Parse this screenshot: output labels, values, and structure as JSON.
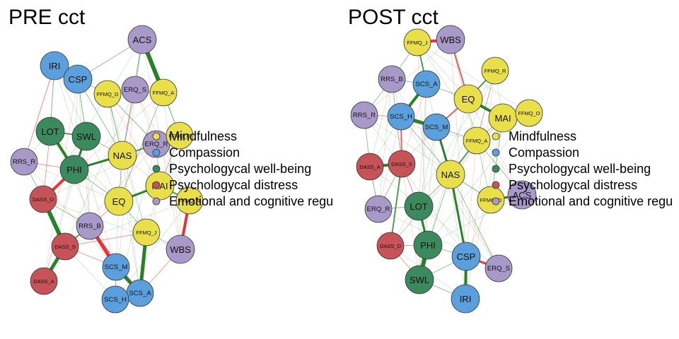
{
  "groups": {
    "mind": {
      "name": "Mindfulness",
      "color": "#E8DF4A"
    },
    "comp": {
      "name": "Compassion",
      "color": "#5B9FDC"
    },
    "well": {
      "name": "Psychologycal well-being",
      "color": "#3A8A5E"
    },
    "dist": {
      "name": "Psychologycal distress",
      "color": "#C65358"
    },
    "emo": {
      "name": "Emotional and cognitive regu",
      "color": "#A899C9"
    }
  },
  "legend_order": [
    "mind",
    "comp",
    "well",
    "dist",
    "emo"
  ],
  "edge_colors": {
    "positive": "#1E7A1E",
    "negative": "#E8282B"
  },
  "networks": [
    {
      "title": "PRE cct",
      "nodes": [
        {
          "id": "ACS",
          "group": "emo"
        },
        {
          "id": "IRI",
          "group": "comp"
        },
        {
          "id": "CSP",
          "group": "comp"
        },
        {
          "id": "FFMQ_D",
          "group": "mind"
        },
        {
          "id": "ERQ_S",
          "group": "emo"
        },
        {
          "id": "FFMQ_A",
          "group": "mind"
        },
        {
          "id": "LOT",
          "group": "well"
        },
        {
          "id": "SWL",
          "group": "well"
        },
        {
          "id": "NAS",
          "group": "mind"
        },
        {
          "id": "ERQ_R",
          "group": "emo"
        },
        {
          "id": "FFMQ_O",
          "group": "mind"
        },
        {
          "id": "RRS_R",
          "group": "emo"
        },
        {
          "id": "PHI",
          "group": "well"
        },
        {
          "id": "MAI",
          "group": "mind"
        },
        {
          "id": "FFMQ_R",
          "group": "mind"
        },
        {
          "id": "DASS_D",
          "group": "dist"
        },
        {
          "id": "EQ",
          "group": "mind"
        },
        {
          "id": "RRS_B",
          "group": "emo"
        },
        {
          "id": "FFMQ_J",
          "group": "mind"
        },
        {
          "id": "DASS_S",
          "group": "dist"
        },
        {
          "id": "WBS",
          "group": "emo"
        },
        {
          "id": "SCS_M",
          "group": "comp"
        },
        {
          "id": "DASS_A",
          "group": "dist"
        },
        {
          "id": "SCS_A",
          "group": "comp"
        },
        {
          "id": "SCS_H",
          "group": "comp"
        }
      ],
      "edges": [
        {
          "a": "ACS",
          "b": "FFMQ_A",
          "w": 6,
          "sign": "pos"
        },
        {
          "a": "LOT",
          "b": "PHI",
          "w": 4,
          "sign": "pos"
        },
        {
          "a": "SWL",
          "b": "PHI",
          "w": 3,
          "sign": "pos"
        },
        {
          "a": "PHI",
          "b": "NAS",
          "w": 3,
          "sign": "pos"
        },
        {
          "a": "DASS_D",
          "b": "DASS_S",
          "w": 6,
          "sign": "pos"
        },
        {
          "a": "DASS_S",
          "b": "DASS_A",
          "w": 5,
          "sign": "pos"
        },
        {
          "a": "PHI",
          "b": "DASS_D",
          "w": 4,
          "sign": "neg"
        },
        {
          "a": "RRS_B",
          "b": "SCS_M",
          "w": 5,
          "sign": "neg"
        },
        {
          "a": "SCS_M",
          "b": "SCS_A",
          "w": 5,
          "sign": "pos"
        },
        {
          "a": "SCS_A",
          "b": "SCS_H",
          "w": 3,
          "sign": "pos"
        },
        {
          "a": "FFMQ_J",
          "b": "SCS_A",
          "w": 5,
          "sign": "pos"
        },
        {
          "a": "FFMQ_R",
          "b": "WBS",
          "w": 4,
          "sign": "neg"
        },
        {
          "a": "NAS",
          "b": "ERQ_R",
          "w": 2,
          "sign": "pos"
        },
        {
          "a": "EQ",
          "b": "MAI",
          "w": 3,
          "sign": "pos"
        },
        {
          "a": "FFMQ_D",
          "b": "NAS",
          "w": 1,
          "sign": "pos"
        },
        {
          "a": "LOT",
          "b": "SWL",
          "w": 2,
          "sign": "pos"
        },
        {
          "a": "RRS_R",
          "b": "DASS_D",
          "w": 1,
          "sign": "pos"
        },
        {
          "a": "RRS_B",
          "b": "DASS_S",
          "w": 2,
          "sign": "pos"
        },
        {
          "a": "EQ",
          "b": "RRS_B",
          "w": 1,
          "sign": "neg"
        },
        {
          "a": "CSP",
          "b": "FFMQ_D",
          "w": 1,
          "sign": "pos"
        },
        {
          "a": "IRI",
          "b": "CSP",
          "w": 1,
          "sign": "pos"
        },
        {
          "a": "ACS",
          "b": "ERQ_S",
          "w": 1,
          "sign": "pos"
        },
        {
          "a": "ERQ_S",
          "b": "FFMQ_A",
          "w": 1,
          "sign": "pos"
        },
        {
          "a": "FFMQ_A",
          "b": "FFMQ_O",
          "w": 1,
          "sign": "pos"
        },
        {
          "a": "MAI",
          "b": "FFMQ_R",
          "w": 2,
          "sign": "pos"
        },
        {
          "a": "EQ",
          "b": "FFMQ_J",
          "w": 1,
          "sign": "pos"
        },
        {
          "a": "SWL",
          "b": "NAS",
          "w": 1,
          "sign": "pos"
        },
        {
          "a": "CSP",
          "b": "SWL",
          "w": 1,
          "sign": "pos"
        },
        {
          "a": "IRI",
          "b": "LOT",
          "w": 1,
          "sign": "pos"
        },
        {
          "a": "RRS_R",
          "b": "PHI",
          "w": 1,
          "sign": "neg"
        },
        {
          "a": "DASS_D",
          "b": "RRS_B",
          "w": 1,
          "sign": "pos"
        },
        {
          "a": "SCS_M",
          "b": "SCS_H",
          "w": 1,
          "sign": "pos"
        },
        {
          "a": "WBS",
          "b": "SCS_A",
          "w": 1,
          "sign": "neg"
        },
        {
          "a": "ACS",
          "b": "NAS",
          "w": 1,
          "sign": "pos"
        },
        {
          "a": "FFMQ_D",
          "b": "FFMQ_A",
          "w": 1,
          "sign": "pos"
        },
        {
          "a": "ERQ_R",
          "b": "MAI",
          "w": 1,
          "sign": "pos"
        },
        {
          "a": "FFMQ_O",
          "b": "MAI",
          "w": 1,
          "sign": "pos"
        },
        {
          "a": "LOT",
          "b": "DASS_D",
          "w": 1,
          "sign": "neg"
        },
        {
          "a": "DASS_S",
          "b": "SCS_M",
          "w": 1,
          "sign": "neg"
        },
        {
          "a": "FFMQ_J",
          "b": "WBS",
          "w": 1,
          "sign": "pos"
        },
        {
          "a": "CSP",
          "b": "NAS",
          "w": 1,
          "sign": "pos"
        },
        {
          "a": "ERQ_S",
          "b": "NAS",
          "w": 1,
          "sign": "neg"
        },
        {
          "a": "EQ",
          "b": "NAS",
          "w": 1,
          "sign": "pos"
        },
        {
          "a": "PHI",
          "b": "EQ",
          "w": 1,
          "sign": "pos"
        },
        {
          "a": "RRS_B",
          "b": "SCS_A",
          "w": 1,
          "sign": "neg"
        },
        {
          "a": "IRI",
          "b": "RRS_R",
          "w": 1,
          "sign": "neg"
        },
        {
          "a": "FFMQ_D",
          "b": "ERQ_R",
          "w": 1,
          "sign": "pos"
        },
        {
          "a": "CSP",
          "b": "ACS",
          "w": 1,
          "sign": "pos"
        },
        {
          "a": "FFMQ_A",
          "b": "EQ",
          "w": 1,
          "sign": "pos"
        },
        {
          "a": "DASS_S",
          "b": "FFMQ_J",
          "w": 1,
          "sign": "neg"
        }
      ]
    },
    {
      "title": "POST cct",
      "nodes": [
        {
          "id": "FFMQ_J",
          "group": "mind"
        },
        {
          "id": "WBS",
          "group": "emo"
        },
        {
          "id": "RRS_B",
          "group": "emo"
        },
        {
          "id": "SCS_A",
          "group": "comp"
        },
        {
          "id": "FFMQ_R",
          "group": "mind"
        },
        {
          "id": "EQ",
          "group": "mind"
        },
        {
          "id": "RRS_R",
          "group": "emo"
        },
        {
          "id": "SCS_H",
          "group": "comp"
        },
        {
          "id": "SCS_M",
          "group": "comp"
        },
        {
          "id": "MAI",
          "group": "mind"
        },
        {
          "id": "FFMQ_O",
          "group": "mind"
        },
        {
          "id": "FFMQ_A",
          "group": "mind"
        },
        {
          "id": "DASS_A",
          "group": "dist"
        },
        {
          "id": "DASS_S",
          "group": "dist"
        },
        {
          "id": "NAS",
          "group": "mind"
        },
        {
          "id": "ACS",
          "group": "emo"
        },
        {
          "id": "FFMQ_D",
          "group": "mind"
        },
        {
          "id": "ERQ_R",
          "group": "emo"
        },
        {
          "id": "LOT",
          "group": "well"
        },
        {
          "id": "DASS_D",
          "group": "dist"
        },
        {
          "id": "PHI",
          "group": "well"
        },
        {
          "id": "CSP",
          "group": "comp"
        },
        {
          "id": "ERQ_S",
          "group": "emo"
        },
        {
          "id": "SWL",
          "group": "well"
        },
        {
          "id": "IRI",
          "group": "comp"
        }
      ],
      "edges": [
        {
          "a": "FFMQ_J",
          "b": "WBS",
          "w": 4,
          "sign": "neg"
        },
        {
          "a": "SCS_A",
          "b": "SCS_H",
          "w": 4,
          "sign": "pos"
        },
        {
          "a": "SCS_H",
          "b": "SCS_M",
          "w": 5,
          "sign": "pos"
        },
        {
          "a": "SCS_M",
          "b": "NAS",
          "w": 3,
          "sign": "pos"
        },
        {
          "a": "EQ",
          "b": "MAI",
          "w": 4,
          "sign": "pos"
        },
        {
          "a": "FFMQ_R",
          "b": "EQ",
          "w": 2,
          "sign": "pos"
        },
        {
          "a": "DASS_A",
          "b": "DASS_S",
          "w": 4,
          "sign": "pos"
        },
        {
          "a": "DASS_S",
          "b": "DASS_D",
          "w": 2,
          "sign": "pos"
        },
        {
          "a": "LOT",
          "b": "PHI",
          "w": 3,
          "sign": "pos"
        },
        {
          "a": "PHI",
          "b": "SWL",
          "w": 6,
          "sign": "pos"
        },
        {
          "a": "CSP",
          "b": "IRI",
          "w": 4,
          "sign": "pos"
        },
        {
          "a": "CSP",
          "b": "ERQ_S",
          "w": 3,
          "sign": "neg"
        },
        {
          "a": "FFMQ_D",
          "b": "ACS",
          "w": 3,
          "sign": "pos"
        },
        {
          "a": "NAS",
          "b": "CSP",
          "w": 3,
          "sign": "pos"
        },
        {
          "a": "WBS",
          "b": "EQ",
          "w": 2,
          "sign": "neg"
        },
        {
          "a": "FFMQ_J",
          "b": "SCS_A",
          "w": 2,
          "sign": "pos"
        },
        {
          "a": "RRS_B",
          "b": "SCS_A",
          "w": 1,
          "sign": "pos"
        },
        {
          "a": "EQ",
          "b": "SCS_M",
          "w": 2,
          "sign": "neg"
        },
        {
          "a": "MAI",
          "b": "FFMQ_A",
          "w": 1,
          "sign": "pos"
        },
        {
          "a": "MAI",
          "b": "FFMQ_O",
          "w": 1,
          "sign": "pos"
        },
        {
          "a": "FFMQ_A",
          "b": "NAS",
          "w": 2,
          "sign": "pos"
        },
        {
          "a": "SCS_H",
          "b": "DASS_S",
          "w": 2,
          "sign": "neg"
        },
        {
          "a": "RRS_R",
          "b": "DASS_A",
          "w": 1,
          "sign": "pos"
        },
        {
          "a": "ERQ_R",
          "b": "DASS_S",
          "w": 1,
          "sign": "pos"
        },
        {
          "a": "LOT",
          "b": "NAS",
          "w": 1,
          "sign": "pos"
        },
        {
          "a": "DASS_D",
          "b": "PHI",
          "w": 1,
          "sign": "neg"
        },
        {
          "a": "PHI",
          "b": "CSP",
          "w": 1,
          "sign": "pos"
        },
        {
          "a": "FFMQ_R",
          "b": "FFMQ_A",
          "w": 1,
          "sign": "pos"
        },
        {
          "a": "RRS_B",
          "b": "RRS_R",
          "w": 1,
          "sign": "pos"
        },
        {
          "a": "SCS_A",
          "b": "EQ",
          "w": 1,
          "sign": "pos"
        },
        {
          "a": "FFMQ_D",
          "b": "NAS",
          "w": 1,
          "sign": "pos"
        },
        {
          "a": "ACS",
          "b": "FFMQ_A",
          "w": 1,
          "sign": "pos"
        },
        {
          "a": "LOT",
          "b": "DASS_S",
          "w": 1,
          "sign": "neg"
        },
        {
          "a": "SWL",
          "b": "DASS_D",
          "w": 1,
          "sign": "neg"
        },
        {
          "a": "ERQ_R",
          "b": "LOT",
          "w": 1,
          "sign": "pos"
        },
        {
          "a": "RRS_R",
          "b": "SCS_H",
          "w": 1,
          "sign": "neg"
        },
        {
          "a": "IRI",
          "b": "SWL",
          "w": 1,
          "sign": "pos"
        },
        {
          "a": "ERQ_S",
          "b": "NAS",
          "w": 1,
          "sign": "pos"
        },
        {
          "a": "FFMQ_J",
          "b": "RRS_B",
          "w": 1,
          "sign": "pos"
        },
        {
          "a": "SCS_M",
          "b": "FFMQ_A",
          "w": 1,
          "sign": "pos"
        },
        {
          "a": "DASS_A",
          "b": "ERQ_R",
          "w": 1,
          "sign": "pos"
        },
        {
          "a": "MAI",
          "b": "FFMQ_D",
          "w": 1,
          "sign": "pos"
        },
        {
          "a": "SCS_H",
          "b": "NAS",
          "w": 1,
          "sign": "pos"
        },
        {
          "a": "RRS_B",
          "b": "DASS_S",
          "w": 1,
          "sign": "pos"
        },
        {
          "a": "PHI",
          "b": "NAS",
          "w": 1,
          "sign": "pos"
        },
        {
          "a": "CSP",
          "b": "SWL",
          "w": 1,
          "sign": "pos"
        }
      ]
    }
  ]
}
